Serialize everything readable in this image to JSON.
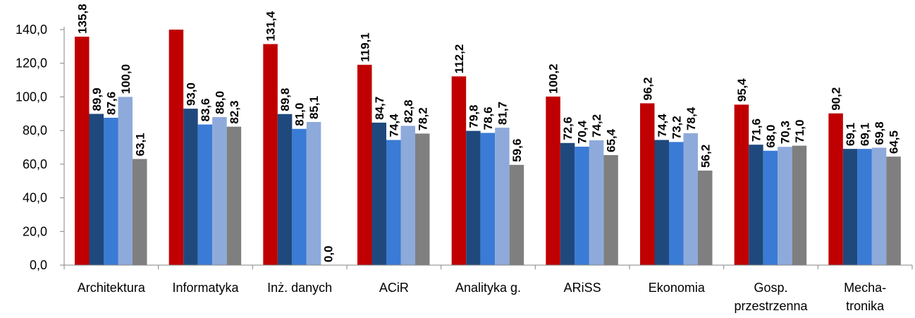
{
  "chart_data": {
    "type": "bar",
    "title": "",
    "xlabel": "",
    "ylabel": "",
    "ylim": [
      0,
      140
    ],
    "yticks": [
      "0,0",
      "20,0",
      "40,0",
      "60,0",
      "80,0",
      "100,0",
      "120,0",
      "140,0"
    ],
    "grid": false,
    "legend": "none",
    "categories": [
      [
        "Architektura"
      ],
      [
        "Informatyka"
      ],
      [
        "Inż. danych"
      ],
      [
        "ACiR"
      ],
      [
        "Analityka g."
      ],
      [
        "ARiSS"
      ],
      [
        "Ekonomia"
      ],
      [
        "Gosp.",
        "przestrzenna"
      ],
      [
        "Mecha-",
        "tronika"
      ]
    ],
    "series": [
      {
        "color": "#c00000",
        "values": [
          135.8,
          140.0,
          131.4,
          119.1,
          112.2,
          100.2,
          96.2,
          95.4,
          90.2
        ],
        "labels": [
          "135,8",
          "",
          "131,4",
          "119,1",
          "112,2",
          "100,2",
          "96,2",
          "95,4",
          "90,2"
        ]
      },
      {
        "color": "#1f497d",
        "values": [
          89.9,
          93.0,
          89.8,
          84.7,
          79.8,
          72.6,
          74.4,
          71.6,
          69.1
        ],
        "labels": [
          "89,9",
          "93,0",
          "89,8",
          "84,7",
          "79,8",
          "72,6",
          "74,4",
          "71,6",
          "69,1"
        ]
      },
      {
        "color": "#3a7bd5",
        "values": [
          87.6,
          83.6,
          81.0,
          74.4,
          78.6,
          70.4,
          73.2,
          68.0,
          69.1
        ],
        "labels": [
          "87,6",
          "83,6",
          "81,0",
          "74,4",
          "78,6",
          "70,4",
          "73,2",
          "68,0",
          "69,1"
        ]
      },
      {
        "color": "#8eaadb",
        "values": [
          100.0,
          88.0,
          85.1,
          82.8,
          81.7,
          74.2,
          78.4,
          70.3,
          69.8
        ],
        "labels": [
          "100,0",
          "88,0",
          "85,1",
          "82,8",
          "81,7",
          "74,2",
          "78,4",
          "70,3",
          "69,8"
        ]
      },
      {
        "color": "#7f7f7f",
        "values": [
          63.1,
          82.3,
          0.0,
          78.2,
          59.6,
          65.4,
          56.2,
          71.0,
          64.5
        ],
        "labels": [
          "63,1",
          "82,3",
          "0,0",
          "78,2",
          "59,6",
          "65,4",
          "56,2",
          "71,0",
          "64,5"
        ]
      }
    ]
  }
}
